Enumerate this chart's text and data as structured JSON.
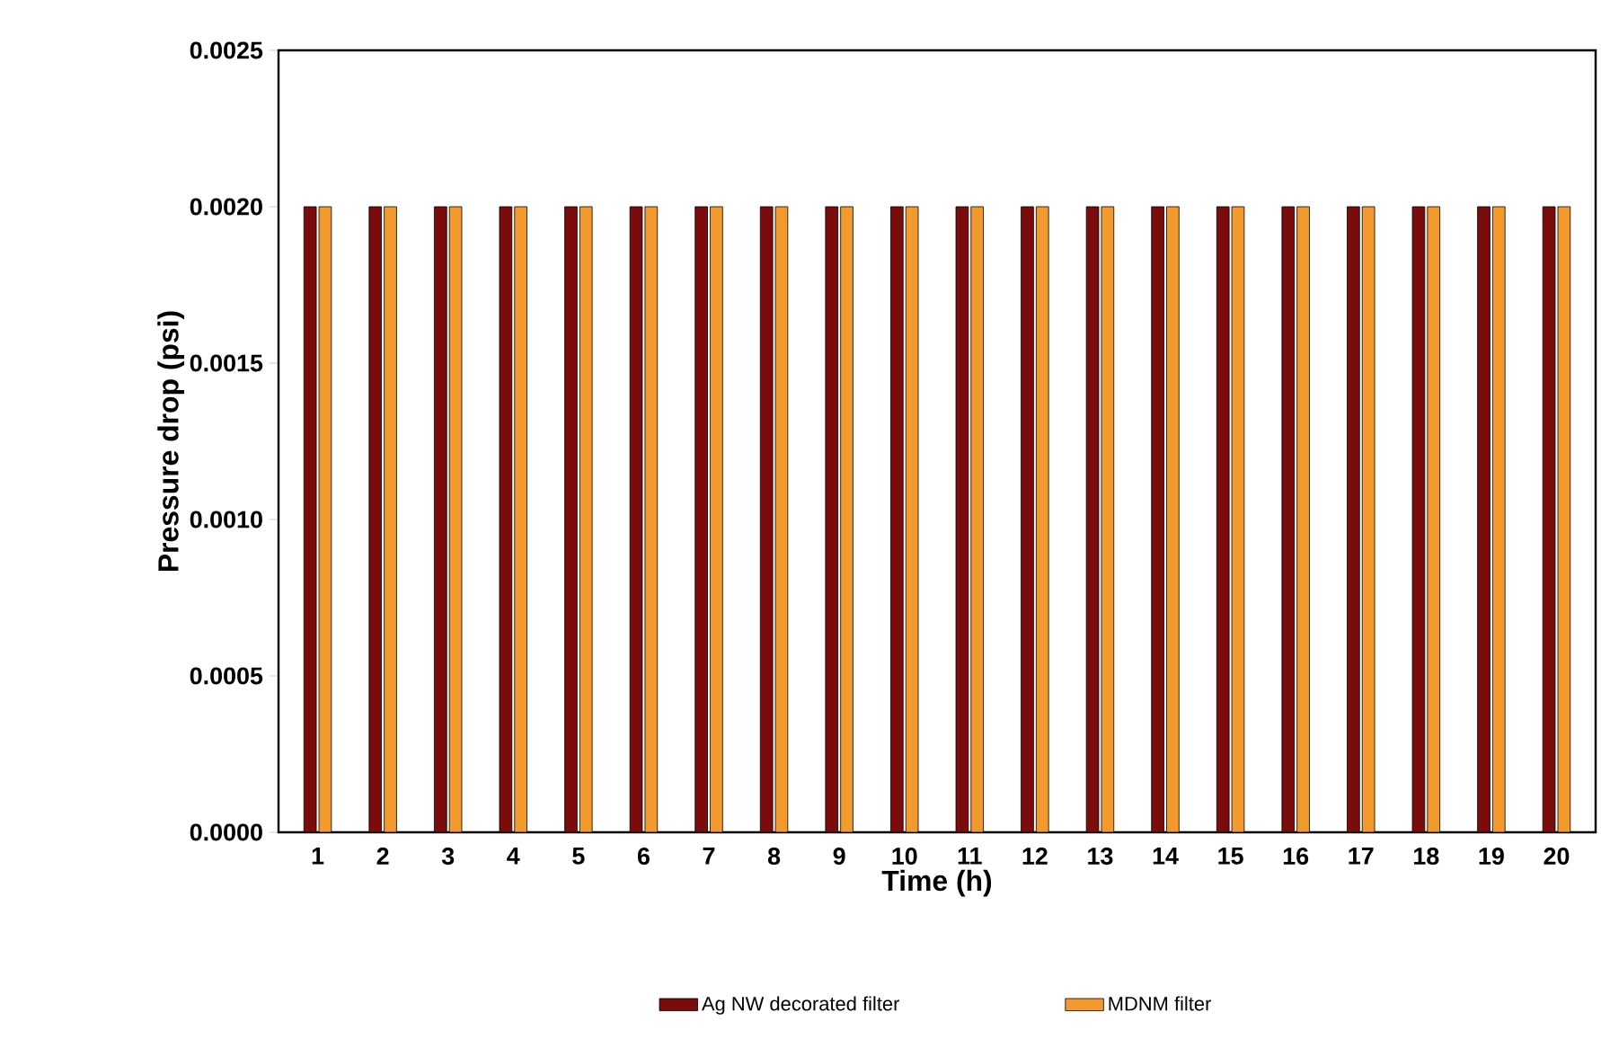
{
  "chart_data": {
    "type": "bar",
    "xlabel": "Time (h)",
    "ylabel": "Pressure drop (psi)",
    "categories": [
      "1",
      "2",
      "3",
      "4",
      "5",
      "6",
      "7",
      "8",
      "9",
      "10",
      "11",
      "12",
      "13",
      "14",
      "15",
      "16",
      "17",
      "18",
      "19",
      "20"
    ],
    "series": [
      {
        "name": "Ag NW decorated filter",
        "color": "#7a0c0c",
        "values": [
          0.002,
          0.002,
          0.002,
          0.002,
          0.002,
          0.002,
          0.002,
          0.002,
          0.002,
          0.002,
          0.002,
          0.002,
          0.002,
          0.002,
          0.002,
          0.002,
          0.002,
          0.002,
          0.002,
          0.002
        ]
      },
      {
        "name": "MDNM filter",
        "color": "#f39a2e",
        "values": [
          0.002,
          0.002,
          0.002,
          0.002,
          0.002,
          0.002,
          0.002,
          0.002,
          0.002,
          0.002,
          0.002,
          0.002,
          0.002,
          0.002,
          0.002,
          0.002,
          0.002,
          0.002,
          0.002,
          0.002
        ]
      }
    ],
    "ylim": [
      0,
      0.0025
    ],
    "yticks": [
      {
        "value": 0,
        "label": "0.0000"
      },
      {
        "value": 0.0005,
        "label": "0.0005"
      },
      {
        "value": 0.001,
        "label": "0.0010"
      },
      {
        "value": 0.0015,
        "label": "0.0015"
      },
      {
        "value": 0.002,
        "label": "0.0020"
      },
      {
        "value": 0.0025,
        "label": "0.0025"
      }
    ],
    "grid": false,
    "legend": "bottom"
  }
}
